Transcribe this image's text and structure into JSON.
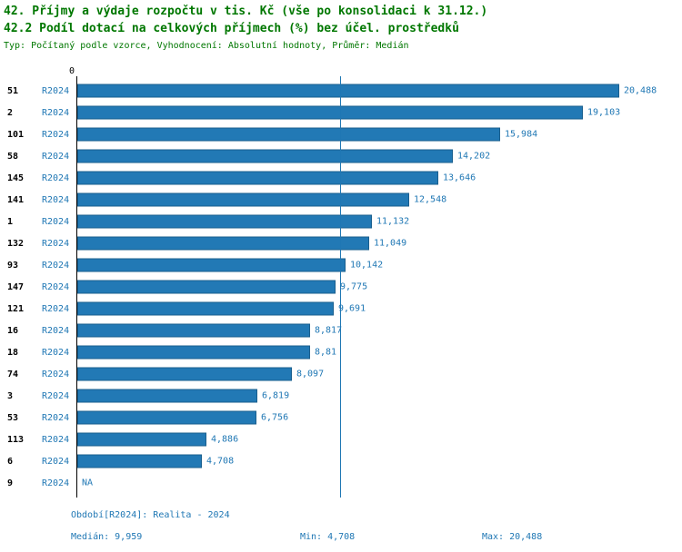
{
  "header": {
    "line1": "42. Příjmy a výdaje rozpočtu v tis. Kč (vše po konsolidaci k 31.12.)",
    "line2": "42.2 Podíl dotací na celkových příjmech (%) bez účel. prostředků",
    "subtitle": "Typ: Počítaný podle vzorce, Vyhodnocení: Absolutní hodnoty, Průměr: Medián"
  },
  "axis": {
    "zero_label": "0"
  },
  "footer": {
    "period": "Období[R2024]: Realita - 2024",
    "median": "Medián: 9,959",
    "min": "Min: 4,708",
    "max": "Max: 20,488"
  },
  "colors": {
    "bar_fill": "#2279b5",
    "bar_border": "#1a5f8e",
    "accent_blue": "#1f77b4",
    "title_green": "#007700"
  },
  "chart_data": {
    "type": "bar",
    "orientation": "horizontal",
    "title": "42. Příjmy a výdaje rozpočtu v tis. Kč (vše po konsolidaci k 31.12.)",
    "subtitle": "42.2 Podíl dotací na celkových příjmech (%) bez účel. prostředků",
    "series_label": "R2024",
    "xlim": [
      0,
      20900
    ],
    "median_value": 9959,
    "min_value": 4708,
    "max_value": 20488,
    "grid": false,
    "rows": [
      {
        "id": "51",
        "period": "R2024",
        "value": 20488,
        "display": "20,488"
      },
      {
        "id": "2",
        "period": "R2024",
        "value": 19103,
        "display": "19,103"
      },
      {
        "id": "101",
        "period": "R2024",
        "value": 15984,
        "display": "15,984"
      },
      {
        "id": "58",
        "period": "R2024",
        "value": 14202,
        "display": "14,202"
      },
      {
        "id": "145",
        "period": "R2024",
        "value": 13646,
        "display": "13,646"
      },
      {
        "id": "141",
        "period": "R2024",
        "value": 12548,
        "display": "12,548"
      },
      {
        "id": "1",
        "period": "R2024",
        "value": 11132,
        "display": "11,132"
      },
      {
        "id": "132",
        "period": "R2024",
        "value": 11049,
        "display": "11,049"
      },
      {
        "id": "93",
        "period": "R2024",
        "value": 10142,
        "display": "10,142"
      },
      {
        "id": "147",
        "period": "R2024",
        "value": 9775,
        "display": "9,775"
      },
      {
        "id": "121",
        "period": "R2024",
        "value": 9691,
        "display": "9,691"
      },
      {
        "id": "16",
        "period": "R2024",
        "value": 8817,
        "display": "8,817"
      },
      {
        "id": "18",
        "period": "R2024",
        "value": 8810,
        "display": "8,81"
      },
      {
        "id": "74",
        "period": "R2024",
        "value": 8097,
        "display": "8,097"
      },
      {
        "id": "3",
        "period": "R2024",
        "value": 6819,
        "display": "6,819"
      },
      {
        "id": "53",
        "period": "R2024",
        "value": 6756,
        "display": "6,756"
      },
      {
        "id": "113",
        "period": "R2024",
        "value": 4886,
        "display": "4,886"
      },
      {
        "id": "6",
        "period": "R2024",
        "value": 4708,
        "display": "4,708"
      },
      {
        "id": "9",
        "period": "R2024",
        "value": null,
        "display": "NA"
      }
    ]
  }
}
